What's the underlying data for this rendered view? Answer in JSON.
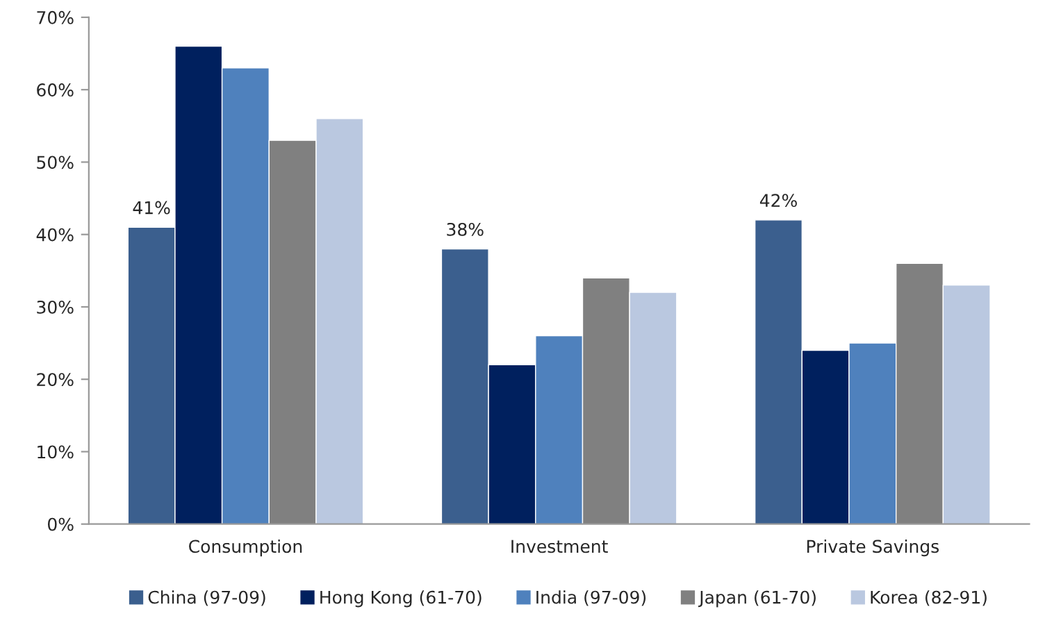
{
  "chart_data": {
    "type": "bar",
    "categories": [
      "Consumption",
      "Investment",
      "Private Savings"
    ],
    "series": [
      {
        "name": "China (97-09)",
        "color": "#3b5f8e",
        "values": [
          41,
          38,
          42
        ],
        "value_labels": [
          "41%",
          "38%",
          "42%"
        ]
      },
      {
        "name": "Hong Kong (61-70)",
        "color": "#00205e",
        "values": [
          66,
          22,
          24
        ]
      },
      {
        "name": "India (97-09)",
        "color": "#4f81bd",
        "values": [
          63,
          26,
          25
        ]
      },
      {
        "name": "Japan (61-70)",
        "color": "#808080",
        "values": [
          53,
          34,
          36
        ]
      },
      {
        "name": "Korea (82-91)",
        "color": "#bac8e0",
        "values": [
          56,
          32,
          33
        ]
      }
    ],
    "ylim": [
      0,
      70
    ],
    "yticks": [
      {
        "value": 0,
        "label": "0%"
      },
      {
        "value": 10,
        "label": "10%"
      },
      {
        "value": 20,
        "label": "20%"
      },
      {
        "value": 30,
        "label": "30%"
      },
      {
        "value": 40,
        "label": "40%"
      },
      {
        "value": 50,
        "label": "50%"
      },
      {
        "value": 60,
        "label": "60%"
      },
      {
        "value": 70,
        "label": "70%"
      }
    ],
    "grid": false,
    "legend": "bottom"
  }
}
